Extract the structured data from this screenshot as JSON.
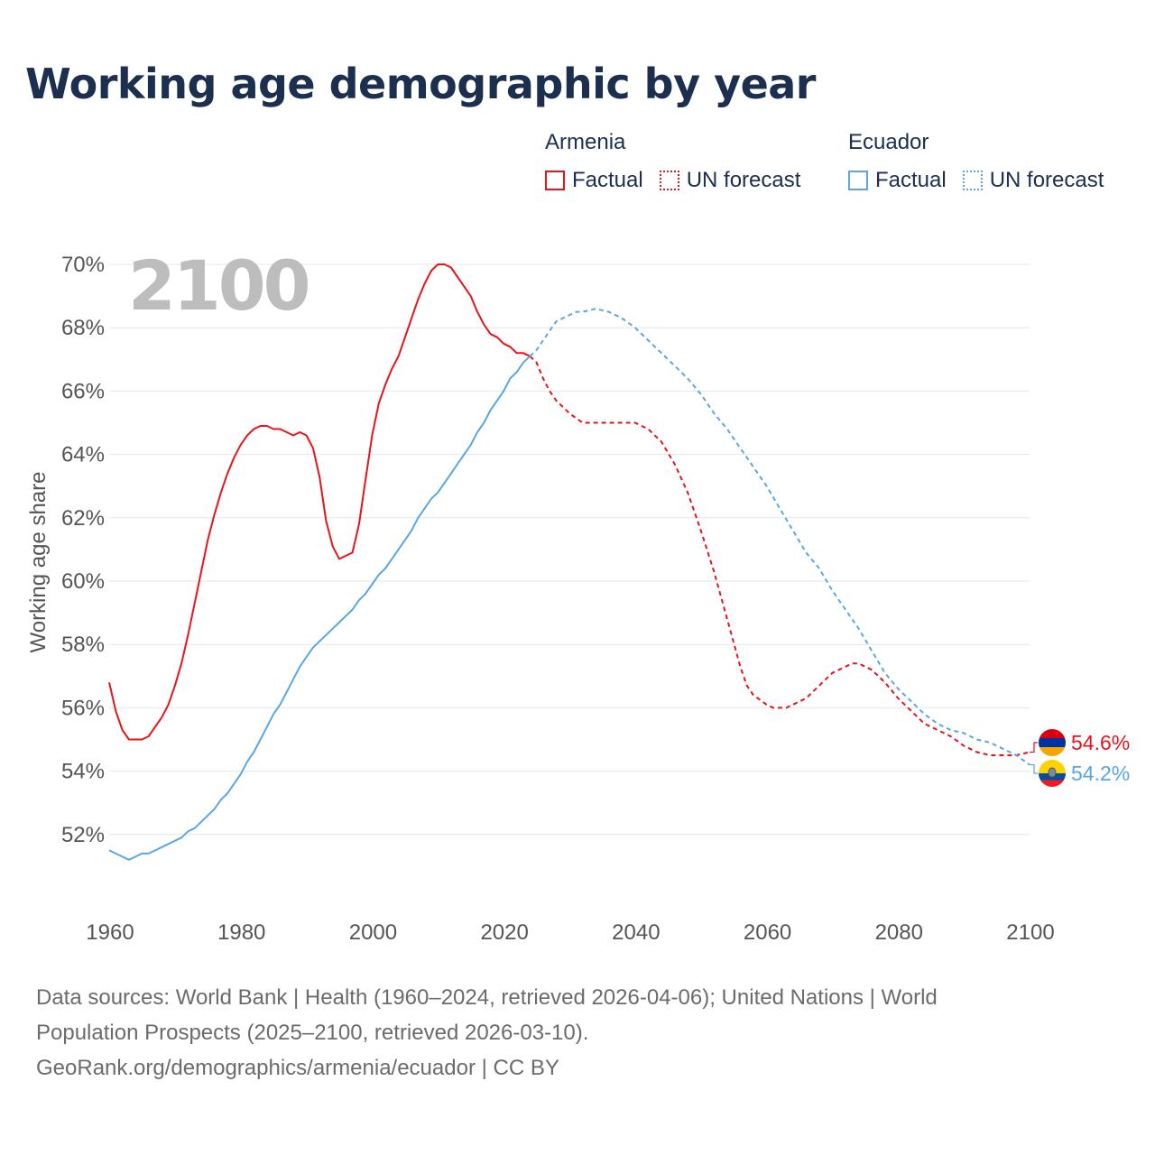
{
  "title": "Working age demographic by year",
  "legend": [
    {
      "group": "Armenia",
      "color": "#e8131b",
      "items": [
        "Factual",
        "UN forecast"
      ]
    },
    {
      "group": "Ecuador",
      "color": "#5aa6e4",
      "items": [
        "Factual",
        "UN forecast"
      ]
    }
  ],
  "year_watermark": "2100",
  "end_labels": {
    "armenia": "54.6%",
    "ecuador": "54.2%"
  },
  "source": {
    "line1": "Data sources: World Bank | Health (1960–2024, retrieved 2026-04-06); United Nations | World",
    "line2": "Population Prospects (2025–2100, retrieved 2026-03-10).",
    "line3": "GeoRank.org/demographics/armenia/ecuador | CC BY"
  },
  "chart_data": {
    "type": "line",
    "title": "Working age demographic by year",
    "xlabel": "",
    "ylabel": "Working age share",
    "xlim": [
      1960,
      2100
    ],
    "ylim": [
      50,
      70
    ],
    "x_ticks": [
      1960,
      1980,
      2000,
      2020,
      2040,
      2060,
      2080,
      2100
    ],
    "y_ticks": [
      52,
      54,
      56,
      58,
      60,
      62,
      64,
      66,
      68,
      70
    ],
    "grid": true,
    "series": [
      {
        "name": "Armenia Factual",
        "color": "#e8131b",
        "style": "solid",
        "points": [
          [
            1960,
            56.8
          ],
          [
            1961,
            55.9
          ],
          [
            1962,
            55.3
          ],
          [
            1963,
            55.0
          ],
          [
            1964,
            55.0
          ],
          [
            1965,
            55.0
          ],
          [
            1966,
            55.1
          ],
          [
            1967,
            55.4
          ],
          [
            1968,
            55.7
          ],
          [
            1969,
            56.1
          ],
          [
            1970,
            56.7
          ],
          [
            1971,
            57.4
          ],
          [
            1972,
            58.3
          ],
          [
            1973,
            59.3
          ],
          [
            1974,
            60.3
          ],
          [
            1975,
            61.3
          ],
          [
            1976,
            62.1
          ],
          [
            1977,
            62.8
          ],
          [
            1978,
            63.4
          ],
          [
            1979,
            63.9
          ],
          [
            1980,
            64.3
          ],
          [
            1981,
            64.6
          ],
          [
            1982,
            64.8
          ],
          [
            1983,
            64.9
          ],
          [
            1984,
            64.9
          ],
          [
            1985,
            64.8
          ],
          [
            1986,
            64.8
          ],
          [
            1987,
            64.7
          ],
          [
            1988,
            64.6
          ],
          [
            1989,
            64.7
          ],
          [
            1990,
            64.6
          ],
          [
            1991,
            64.2
          ],
          [
            1992,
            63.3
          ],
          [
            1993,
            61.9
          ],
          [
            1994,
            61.1
          ],
          [
            1995,
            60.7
          ],
          [
            1996,
            60.8
          ],
          [
            1997,
            60.9
          ],
          [
            1998,
            61.8
          ],
          [
            1999,
            63.2
          ],
          [
            2000,
            64.6
          ],
          [
            2001,
            65.6
          ],
          [
            2002,
            66.2
          ],
          [
            2003,
            66.7
          ],
          [
            2004,
            67.1
          ],
          [
            2005,
            67.7
          ],
          [
            2006,
            68.3
          ],
          [
            2007,
            68.9
          ],
          [
            2008,
            69.4
          ],
          [
            2009,
            69.8
          ],
          [
            2010,
            70.0
          ],
          [
            2011,
            70.0
          ],
          [
            2012,
            69.9
          ],
          [
            2013,
            69.6
          ],
          [
            2014,
            69.3
          ],
          [
            2015,
            69.0
          ],
          [
            2016,
            68.5
          ],
          [
            2017,
            68.1
          ],
          [
            2018,
            67.8
          ],
          [
            2019,
            67.7
          ],
          [
            2020,
            67.5
          ],
          [
            2021,
            67.4
          ],
          [
            2022,
            67.2
          ],
          [
            2023,
            67.2
          ],
          [
            2024,
            67.1
          ]
        ]
      },
      {
        "name": "Armenia UN forecast",
        "color": "#e8131b",
        "style": "dashed",
        "points": [
          [
            2024,
            67.1
          ],
          [
            2025,
            66.9
          ],
          [
            2026,
            66.4
          ],
          [
            2027,
            66.0
          ],
          [
            2028,
            65.7
          ],
          [
            2029,
            65.5
          ],
          [
            2030,
            65.3
          ],
          [
            2032,
            65.0
          ],
          [
            2034,
            65.0
          ],
          [
            2036,
            65.0
          ],
          [
            2038,
            65.0
          ],
          [
            2040,
            65.0
          ],
          [
            2042,
            64.8
          ],
          [
            2044,
            64.4
          ],
          [
            2046,
            63.7
          ],
          [
            2048,
            62.8
          ],
          [
            2050,
            61.6
          ],
          [
            2052,
            60.3
          ],
          [
            2054,
            58.8
          ],
          [
            2056,
            57.3
          ],
          [
            2057,
            56.7
          ],
          [
            2058,
            56.4
          ],
          [
            2060,
            56.1
          ],
          [
            2061,
            56.0
          ],
          [
            2062,
            56.0
          ],
          [
            2063,
            56.0
          ],
          [
            2064,
            56.1
          ],
          [
            2066,
            56.3
          ],
          [
            2068,
            56.7
          ],
          [
            2070,
            57.1
          ],
          [
            2072,
            57.3
          ],
          [
            2073,
            57.4
          ],
          [
            2074,
            57.4
          ],
          [
            2076,
            57.2
          ],
          [
            2078,
            56.8
          ],
          [
            2080,
            56.3
          ],
          [
            2082,
            55.9
          ],
          [
            2084,
            55.5
          ],
          [
            2086,
            55.3
          ],
          [
            2088,
            55.1
          ],
          [
            2090,
            54.8
          ],
          [
            2092,
            54.6
          ],
          [
            2094,
            54.5
          ],
          [
            2096,
            54.5
          ],
          [
            2098,
            54.5
          ],
          [
            2100,
            54.6
          ]
        ]
      },
      {
        "name": "Ecuador Factual",
        "color": "#5aa6e4",
        "style": "solid",
        "points": [
          [
            1960,
            51.5
          ],
          [
            1961,
            51.4
          ],
          [
            1962,
            51.3
          ],
          [
            1963,
            51.2
          ],
          [
            1964,
            51.3
          ],
          [
            1965,
            51.4
          ],
          [
            1966,
            51.4
          ],
          [
            1967,
            51.5
          ],
          [
            1968,
            51.6
          ],
          [
            1969,
            51.7
          ],
          [
            1970,
            51.8
          ],
          [
            1971,
            51.9
          ],
          [
            1972,
            52.1
          ],
          [
            1973,
            52.2
          ],
          [
            1974,
            52.4
          ],
          [
            1975,
            52.6
          ],
          [
            1976,
            52.8
          ],
          [
            1977,
            53.1
          ],
          [
            1978,
            53.3
          ],
          [
            1979,
            53.6
          ],
          [
            1980,
            53.9
          ],
          [
            1981,
            54.3
          ],
          [
            1982,
            54.6
          ],
          [
            1983,
            55.0
          ],
          [
            1984,
            55.4
          ],
          [
            1985,
            55.8
          ],
          [
            1986,
            56.1
          ],
          [
            1987,
            56.5
          ],
          [
            1988,
            56.9
          ],
          [
            1989,
            57.3
          ],
          [
            1990,
            57.6
          ],
          [
            1991,
            57.9
          ],
          [
            1992,
            58.1
          ],
          [
            1993,
            58.3
          ],
          [
            1994,
            58.5
          ],
          [
            1995,
            58.7
          ],
          [
            1996,
            58.9
          ],
          [
            1997,
            59.1
          ],
          [
            1998,
            59.4
          ],
          [
            1999,
            59.6
          ],
          [
            2000,
            59.9
          ],
          [
            2001,
            60.2
          ],
          [
            2002,
            60.4
          ],
          [
            2003,
            60.7
          ],
          [
            2004,
            61.0
          ],
          [
            2005,
            61.3
          ],
          [
            2006,
            61.6
          ],
          [
            2007,
            62.0
          ],
          [
            2008,
            62.3
          ],
          [
            2009,
            62.6
          ],
          [
            2010,
            62.8
          ],
          [
            2011,
            63.1
          ],
          [
            2012,
            63.4
          ],
          [
            2013,
            63.7
          ],
          [
            2014,
            64.0
          ],
          [
            2015,
            64.3
          ],
          [
            2016,
            64.7
          ],
          [
            2017,
            65.0
          ],
          [
            2018,
            65.4
          ],
          [
            2019,
            65.7
          ],
          [
            2020,
            66.0
          ],
          [
            2021,
            66.4
          ],
          [
            2022,
            66.6
          ],
          [
            2023,
            66.9
          ],
          [
            2024,
            67.1
          ]
        ]
      },
      {
        "name": "Ecuador UN forecast",
        "color": "#5aa6e4",
        "style": "dashed",
        "points": [
          [
            2024,
            67.1
          ],
          [
            2025,
            67.3
          ],
          [
            2026,
            67.6
          ],
          [
            2027,
            67.9
          ],
          [
            2028,
            68.2
          ],
          [
            2030,
            68.4
          ],
          [
            2031,
            68.5
          ],
          [
            2032,
            68.5
          ],
          [
            2034,
            68.6
          ],
          [
            2036,
            68.5
          ],
          [
            2038,
            68.3
          ],
          [
            2040,
            68.0
          ],
          [
            2042,
            67.6
          ],
          [
            2044,
            67.2
          ],
          [
            2046,
            66.8
          ],
          [
            2048,
            66.4
          ],
          [
            2050,
            65.9
          ],
          [
            2052,
            65.3
          ],
          [
            2054,
            64.8
          ],
          [
            2056,
            64.2
          ],
          [
            2058,
            63.6
          ],
          [
            2060,
            63.0
          ],
          [
            2062,
            62.3
          ],
          [
            2064,
            61.6
          ],
          [
            2066,
            60.9
          ],
          [
            2068,
            60.4
          ],
          [
            2070,
            59.7
          ],
          [
            2072,
            59.1
          ],
          [
            2074,
            58.5
          ],
          [
            2076,
            57.8
          ],
          [
            2078,
            57.1
          ],
          [
            2080,
            56.6
          ],
          [
            2082,
            56.2
          ],
          [
            2084,
            55.8
          ],
          [
            2086,
            55.5
          ],
          [
            2088,
            55.3
          ],
          [
            2090,
            55.2
          ],
          [
            2092,
            55.0
          ],
          [
            2094,
            54.9
          ],
          [
            2096,
            54.7
          ],
          [
            2098,
            54.5
          ],
          [
            2100,
            54.2
          ]
        ]
      }
    ]
  }
}
